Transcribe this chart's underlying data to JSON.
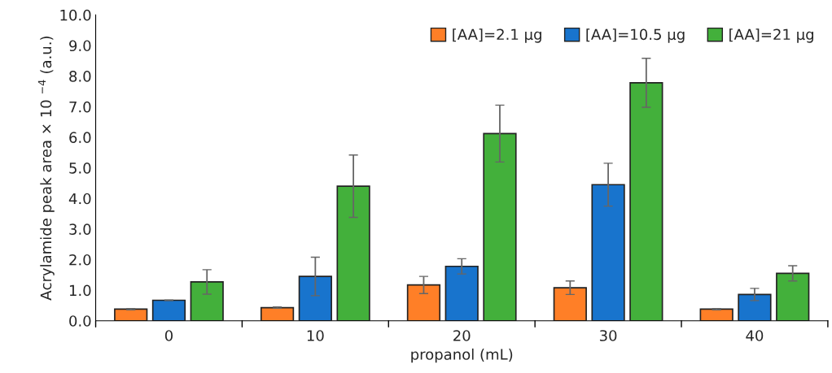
{
  "chart_data": {
    "type": "bar",
    "xlabel": "propanol (mL)",
    "ylabel": "Acrylamide peak area × 10 $^{−4}$ (a.u.)",
    "categories": [
      "0",
      "10",
      "20",
      "30",
      "40"
    ],
    "series": [
      {
        "name": "[AA]=2.1 µg",
        "color": "#ff7f27",
        "values": [
          0.38,
          0.43,
          1.17,
          1.08,
          0.38
        ],
        "errors": [
          0.02,
          0.02,
          0.28,
          0.22,
          0.02
        ]
      },
      {
        "name": "[AA]=10.5 µg",
        "color": "#1874cd",
        "values": [
          0.67,
          1.45,
          1.78,
          4.45,
          0.86
        ],
        "errors": [
          0.01,
          0.63,
          0.25,
          0.7,
          0.2
        ]
      },
      {
        "name": "[AA]=21 µg",
        "color": "#43b03b",
        "values": [
          1.27,
          4.4,
          6.12,
          7.78,
          1.55
        ],
        "errors": [
          0.4,
          1.02,
          0.93,
          0.8,
          0.25
        ]
      }
    ],
    "ylim": [
      0,
      10
    ],
    "yticks": [
      {
        "value": 0,
        "label": "0.0"
      },
      {
        "value": 1,
        "label": "1.0"
      },
      {
        "value": 2,
        "label": "2.0"
      },
      {
        "value": 3,
        "label": "3.0"
      },
      {
        "value": 4,
        "label": "4.0"
      },
      {
        "value": 5,
        "label": "5.0"
      },
      {
        "value": 6,
        "label": "6.0"
      },
      {
        "value": 7,
        "label": "7.0"
      },
      {
        "value": 8,
        "label": "8.0"
      },
      {
        "value": 9,
        "label": "9.0"
      },
      {
        "value": 10,
        "label": "10.0"
      }
    ],
    "grid": false,
    "legend": "top right"
  }
}
